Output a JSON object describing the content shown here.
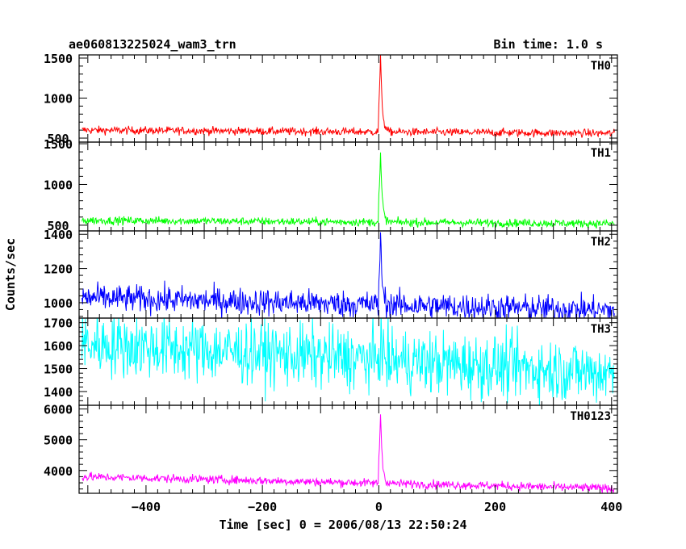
{
  "chart_data": {
    "type": "line",
    "title": "ae060813225024_wam3_trn",
    "bin_label": "Bin time: 1.0 s",
    "xlabel": "Time [sec] 0 = 2006/08/13 22:50:24",
    "ylabel": "Counts/sec",
    "xlim": [
      -515,
      410
    ],
    "x_ticks": [
      -400,
      -200,
      0,
      200,
      400
    ],
    "x_tick_labels": [
      "−400",
      "−200",
      "0",
      "200",
      "400"
    ],
    "grid": false,
    "panels": [
      {
        "name": "TH0",
        "color": "#ff0000",
        "ylim": [
          450,
          1540
        ],
        "yticks": [
          500,
          1000,
          1500
        ],
        "ytick_labels": [
          "500",
          "1000",
          "1500"
        ],
        "base_start": 600,
        "base_end": 560,
        "noise": 25,
        "peak": 1540,
        "peak_time": 3,
        "decay": 3
      },
      {
        "name": "TH1",
        "color": "#00ff00",
        "ylim": [
          430,
          1520
        ],
        "yticks": [
          500,
          1000,
          1500
        ],
        "ytick_labels": [
          "500",
          "1000",
          "1500"
        ],
        "base_start": 560,
        "base_end": 520,
        "noise": 25,
        "peak": 1400,
        "peak_time": 3,
        "decay": 3
      },
      {
        "name": "TH2",
        "color": "#0000ff",
        "ylim": [
          910,
          1420
        ],
        "yticks": [
          1000,
          1200,
          1400
        ],
        "ytick_labels": [
          "1000",
          "1200",
          "1400"
        ],
        "base_start": 1030,
        "base_end": 955,
        "noise": 40,
        "peak": 1420,
        "peak_time": 3,
        "decay": 3
      },
      {
        "name": "TH3",
        "color": "#00ffff",
        "ylim": [
          1340,
          1720
        ],
        "yticks": [
          1400,
          1500,
          1600,
          1700
        ],
        "ytick_labels": [
          "1400",
          "1500",
          "1600",
          "1700"
        ],
        "base_start": 1610,
        "base_end": 1480,
        "noise": 70,
        "peak": 1700,
        "peak_time": 3,
        "decay": 3
      },
      {
        "name": "TH0123",
        "color": "#ff00ff",
        "ylim": [
          3260,
          6120
        ],
        "yticks": [
          4000,
          5000,
          6000
        ],
        "ytick_labels": [
          "4000",
          "5000",
          "6000"
        ],
        "base_start": 3800,
        "base_end": 3420,
        "noise": 70,
        "peak": 6100,
        "peak_time": 3,
        "decay": 3
      }
    ]
  }
}
